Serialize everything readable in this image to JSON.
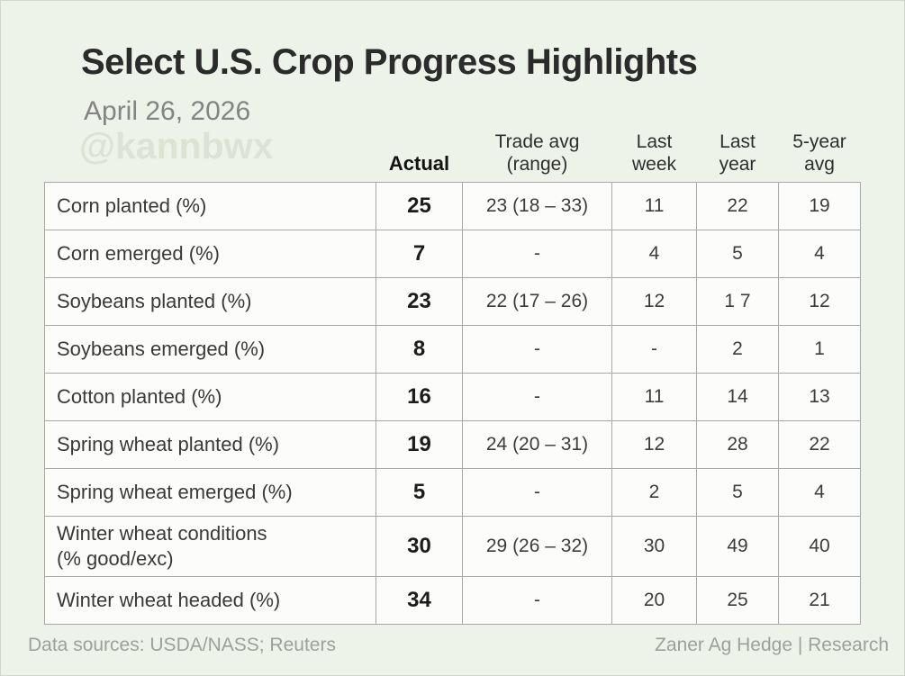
{
  "header": {
    "title": "Select U.S. Crop Progress Highlights",
    "date": "April 26, 2026",
    "watermark": "@kannbwx"
  },
  "table_headers": {
    "actual": "Actual",
    "trade": "Trade avg\n(range)",
    "week": "Last\nweek",
    "year": "Last\nyear",
    "avg5": "5-year\navg"
  },
  "chart_data": {
    "type": "table",
    "title": "Select U.S. Crop Progress Highlights",
    "subtitle": "April 26, 2026",
    "columns": [
      "Actual",
      "Trade avg (range)",
      "Last week",
      "Last year",
      "5-year avg"
    ],
    "rows": [
      {
        "label": "Corn planted (%)",
        "values": [
          "25",
          "23 (18 – 33)",
          "11",
          "22",
          "19"
        ]
      },
      {
        "label": "Corn emerged (%)",
        "values": [
          "7",
          "-",
          "4",
          "5",
          "4"
        ]
      },
      {
        "label": "Soybeans planted (%)",
        "values": [
          "23",
          "22 (17 – 26)",
          "12",
          "1 7",
          "12"
        ]
      },
      {
        "label": "Soybeans emerged (%)",
        "values": [
          "8",
          "-",
          "-",
          "2",
          "1"
        ]
      },
      {
        "label": "Cotton planted (%)",
        "values": [
          "16",
          "-",
          "11",
          "14",
          "13"
        ]
      },
      {
        "label": "Spring wheat planted (%)",
        "values": [
          "19",
          "24 (20 – 31)",
          "12",
          "28",
          "22"
        ]
      },
      {
        "label": "Spring wheat emerged (%)",
        "values": [
          "5",
          "-",
          "2",
          "5",
          "4"
        ]
      },
      {
        "label": "Winter wheat conditions",
        "label2": "(% good/exc)",
        "values": [
          "30",
          "29 (26 – 32)",
          "30",
          "49",
          "40"
        ]
      },
      {
        "label": "Winter wheat headed (%)",
        "values": [
          "34",
          "-",
          "20",
          "25",
          "21"
        ]
      }
    ]
  },
  "footer": {
    "left": "Data sources: USDA/NASS; Reuters",
    "right": "Zaner Ag Hedge | Research"
  },
  "colors": {
    "background": "#edf3e8",
    "cell_background": "#fcfdfb",
    "border": "#a8a8a8",
    "title_text": "#2b2b2b",
    "muted_text": "#9da19a",
    "watermark_text": "#dde2d5"
  }
}
